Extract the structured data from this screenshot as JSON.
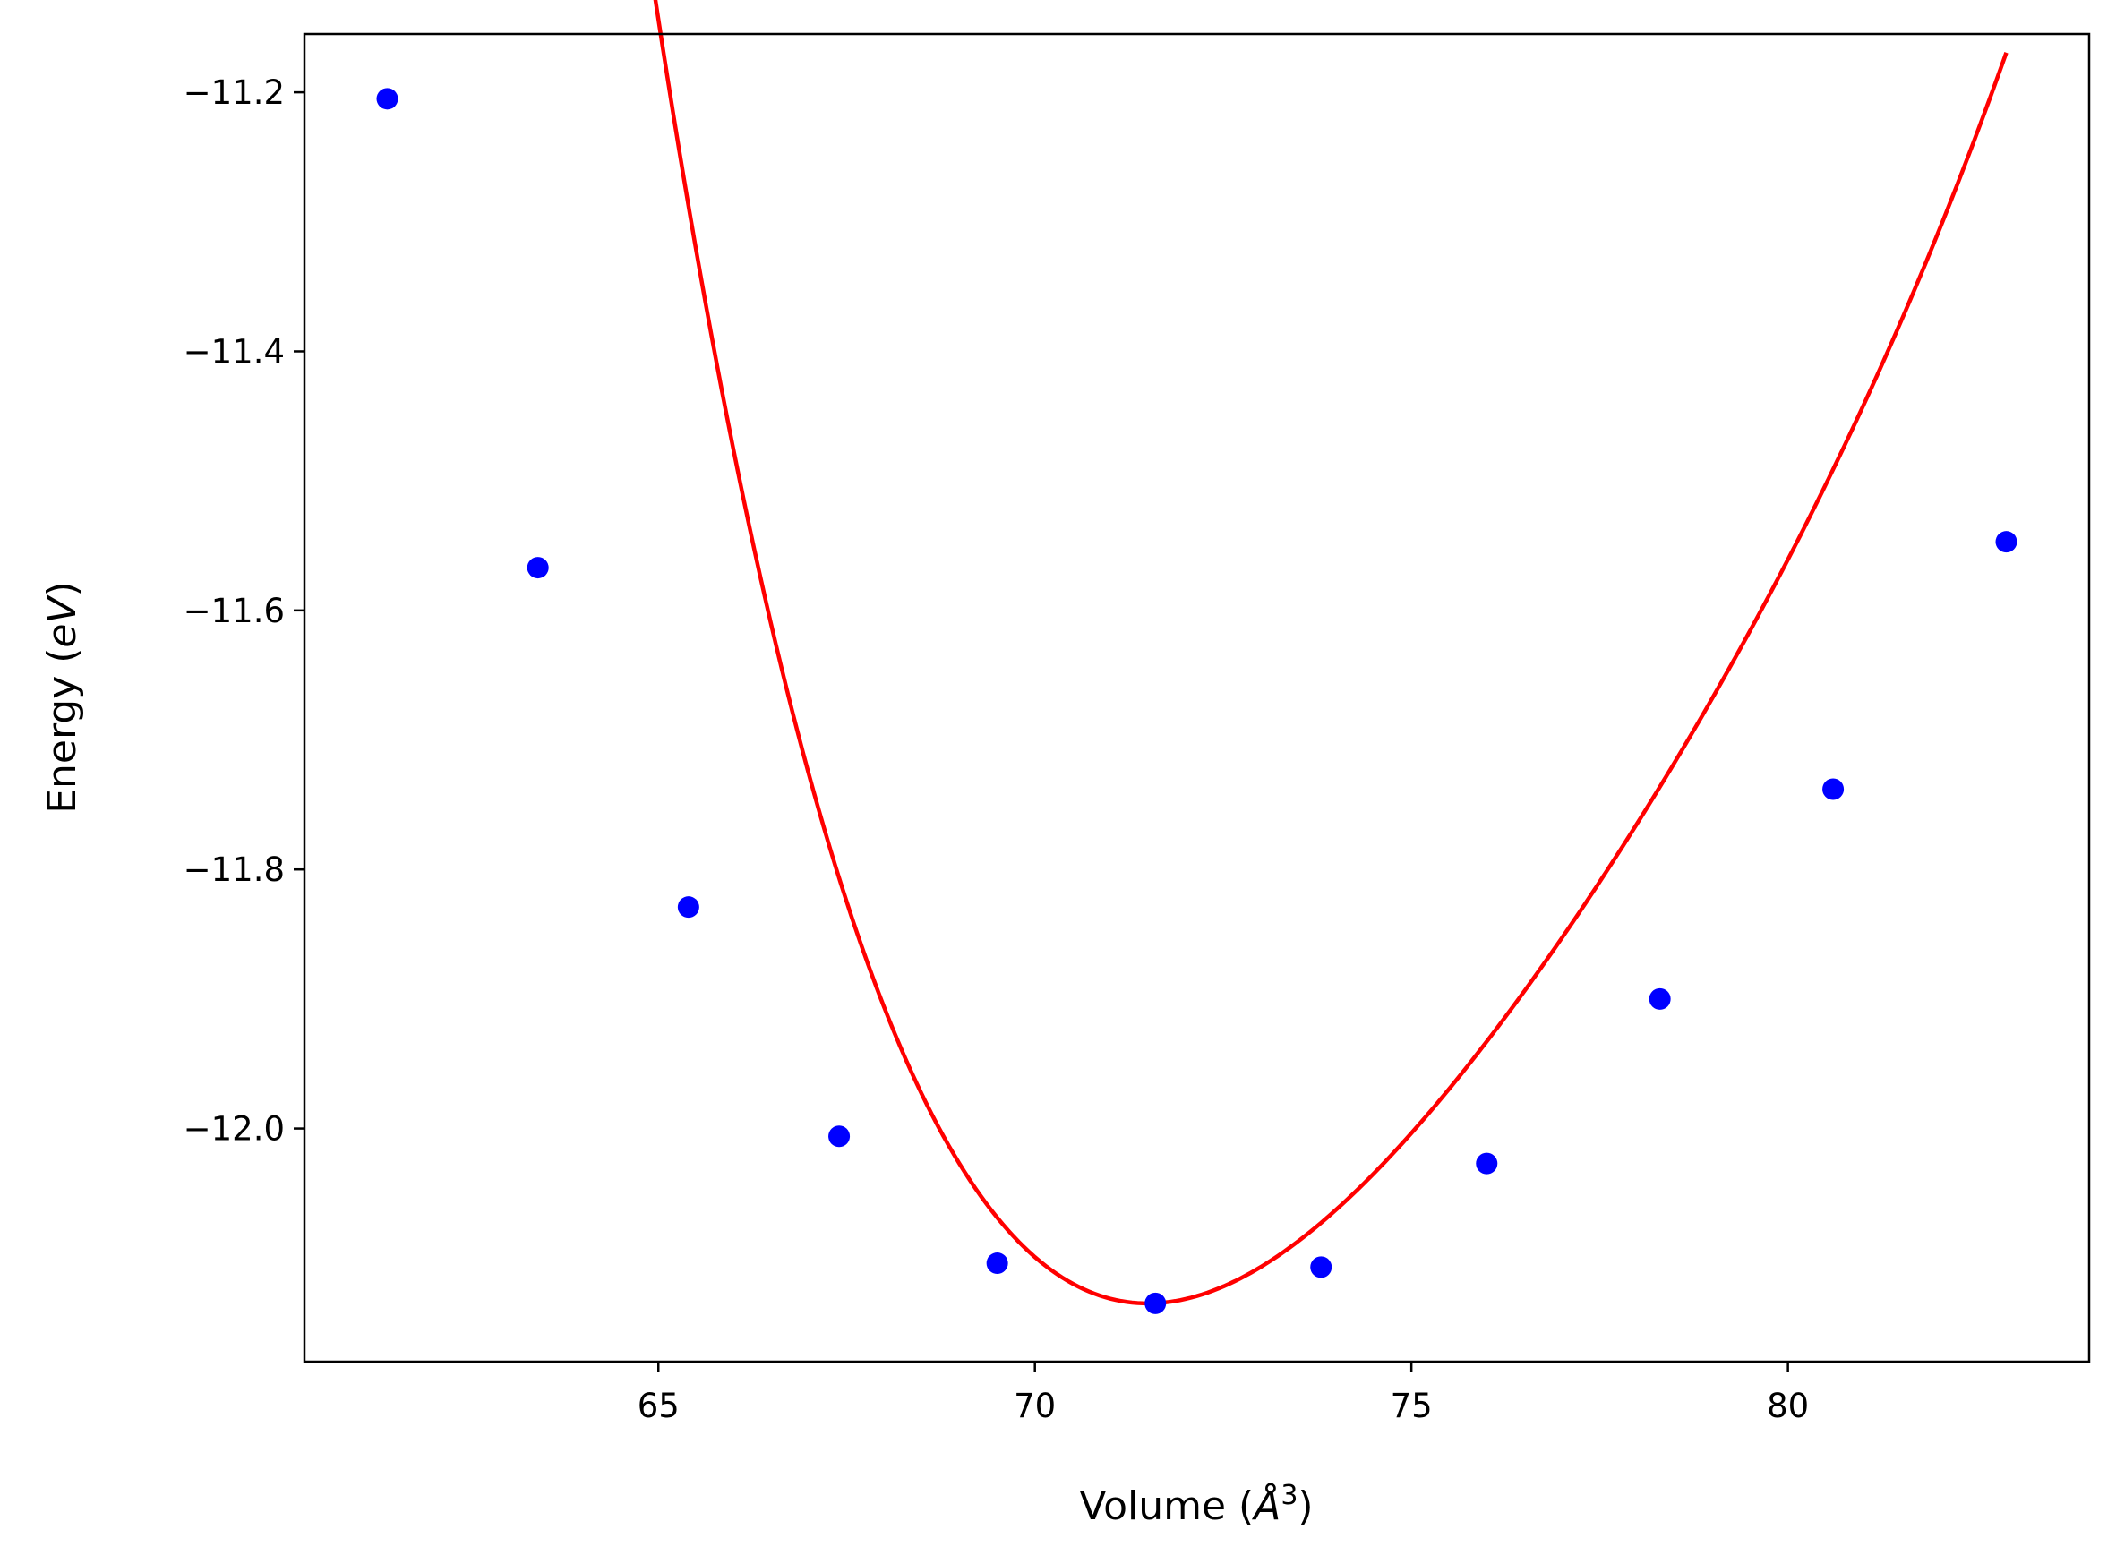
{
  "chart_data": {
    "type": "scatter",
    "title": "",
    "xlabel": {
      "prefix": "Volume (",
      "symbol": "Å",
      "sup": "3",
      "suffix": ")"
    },
    "ylabel": {
      "prefix": "Energy (",
      "unit": "eV",
      "suffix": ")"
    },
    "xlim": [
      60.3,
      84.0
    ],
    "ylim": [
      -12.18,
      -11.155
    ],
    "xticks": [
      65,
      70,
      75,
      80
    ],
    "xtick_labels": [
      "65",
      "70",
      "75",
      "80"
    ],
    "yticks": [
      -11.2,
      -11.4,
      -11.6,
      -11.8,
      -12.0
    ],
    "ytick_labels": [
      "−11.2",
      "−11.4",
      "−11.6",
      "−11.8",
      "−12.0"
    ],
    "grid": false,
    "legend": null,
    "series": [
      {
        "kind": "points",
        "color": "#0000ff",
        "x": [
          61.4,
          63.4,
          65.4,
          67.4,
          69.5,
          71.6,
          73.8,
          76.0,
          78.3,
          80.6,
          82.9
        ],
        "y": [
          -11.205,
          -11.567,
          -11.829,
          -12.006,
          -12.104,
          -12.135,
          -12.107,
          -12.027,
          -11.9,
          -11.738,
          -11.547
        ]
      },
      {
        "kind": "fit",
        "color": "#ff0000",
        "V0": 71.5,
        "E0": -12.135,
        "coef": [
          0.0141,
          -0.00113,
          4.78e-05
        ]
      }
    ]
  }
}
